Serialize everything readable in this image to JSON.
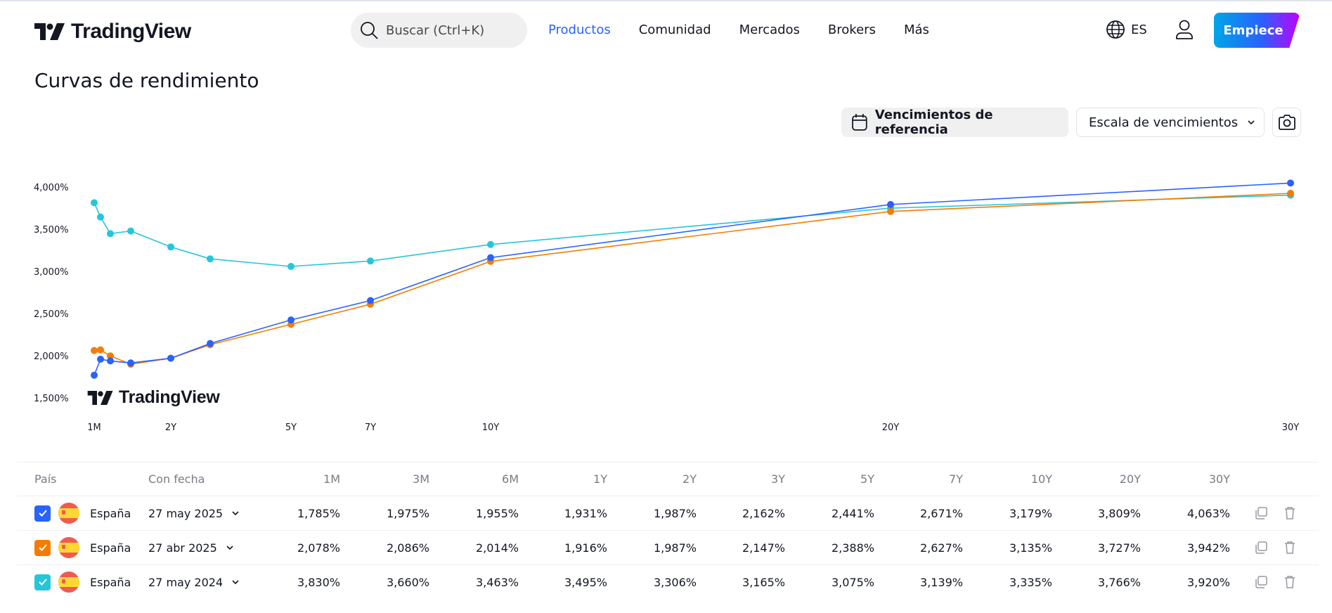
{
  "header": {
    "logo_text": "TradingView",
    "search_placeholder": "Buscar (Ctrl+K)",
    "nav": [
      {
        "label": "Productos",
        "active": true
      },
      {
        "label": "Comunidad",
        "active": false
      },
      {
        "label": "Mercados",
        "active": false
      },
      {
        "label": "Brokers",
        "active": false
      },
      {
        "label": "Más",
        "active": false
      }
    ],
    "language": "ES",
    "cta_label": "Empiece"
  },
  "page": {
    "title": "Curvas de rendimiento"
  },
  "toolbar": {
    "reference_label": "Vencimientos de referencia",
    "scale_label": "Escala de vencimientos"
  },
  "chart": {
    "watermark": "TradingView"
  },
  "colors": {
    "series_blue": "#2962ff",
    "series_orange": "#f57c00",
    "series_cyan": "#26c6da",
    "accent": "#2962ff",
    "nav_active": "#2962ff"
  },
  "chart_data": {
    "type": "line",
    "title": "Curvas de rendimiento",
    "xlabel": "",
    "ylabel": "",
    "x": [
      "1M",
      "3M",
      "6M",
      "1Y",
      "2Y",
      "3Y",
      "5Y",
      "7Y",
      "10Y",
      "20Y",
      "30Y"
    ],
    "x_tick_labels": [
      "1M",
      "2Y",
      "5Y",
      "7Y",
      "10Y",
      "20Y",
      "30Y"
    ],
    "y_tick_labels": [
      "1,500%",
      "2,000%",
      "2,500%",
      "3,000%",
      "3,500%",
      "4,000%"
    ],
    "ylim": [
      1.5,
      4.0
    ],
    "grid": false,
    "legend": "none (table below acts as legend)",
    "series": [
      {
        "name": "España 27 may 2025",
        "color": "#2962ff",
        "values": [
          1.785,
          1.975,
          1.955,
          1.931,
          1.987,
          2.162,
          2.441,
          2.671,
          3.179,
          3.809,
          4.063
        ]
      },
      {
        "name": "España 27 abr 2025",
        "color": "#f57c00",
        "values": [
          2.078,
          2.086,
          2.014,
          1.916,
          1.987,
          2.147,
          2.388,
          2.627,
          3.135,
          3.727,
          3.942
        ]
      },
      {
        "name": "España 27 may 2024",
        "color": "#26c6da",
        "values": [
          3.83,
          3.66,
          3.463,
          3.495,
          3.306,
          3.165,
          3.075,
          3.139,
          3.335,
          3.766,
          3.92
        ]
      }
    ]
  },
  "table": {
    "headers": {
      "country": "País",
      "date": "Con fecha",
      "tenors": [
        "1M",
        "3M",
        "6M",
        "1Y",
        "2Y",
        "3Y",
        "5Y",
        "7Y",
        "10Y",
        "20Y",
        "30Y"
      ]
    },
    "rows": [
      {
        "color": "#2962ff",
        "checked": true,
        "country": "España",
        "date": "27 may 2025",
        "values": [
          "1,785%",
          "1,975%",
          "1,955%",
          "1,931%",
          "1,987%",
          "2,162%",
          "2,441%",
          "2,671%",
          "3,179%",
          "3,809%",
          "4,063%"
        ]
      },
      {
        "color": "#f57c00",
        "checked": true,
        "country": "España",
        "date": "27 abr 2025",
        "values": [
          "2,078%",
          "2,086%",
          "2,014%",
          "1,916%",
          "1,987%",
          "2,147%",
          "2,388%",
          "2,627%",
          "3,135%",
          "3,727%",
          "3,942%"
        ]
      },
      {
        "color": "#26c6da",
        "checked": true,
        "country": "España",
        "date": "27 may 2024",
        "values": [
          "3,830%",
          "3,660%",
          "3,463%",
          "3,495%",
          "3,306%",
          "3,165%",
          "3,075%",
          "3,139%",
          "3,335%",
          "3,766%",
          "3,920%"
        ]
      }
    ]
  }
}
